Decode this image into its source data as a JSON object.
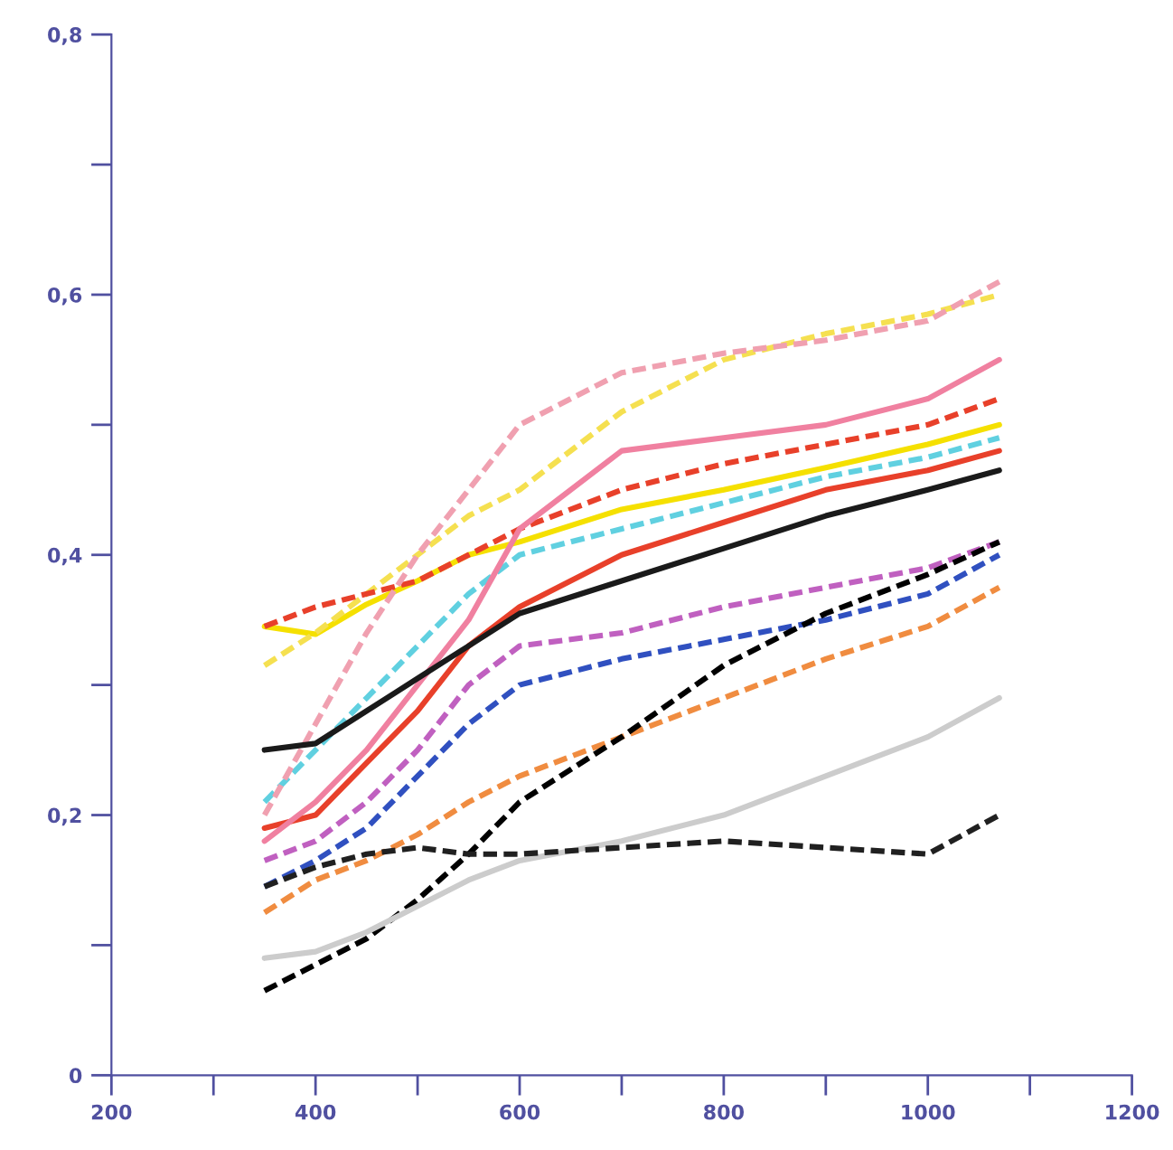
{
  "chart_data": {
    "type": "line",
    "x": [
      350,
      400,
      450,
      500,
      550,
      600,
      700,
      800,
      900,
      1000,
      1070
    ],
    "series": [
      {
        "color": "#f5e000",
        "line_style": "solid",
        "values": [
          0.345,
          0.339,
          0.362,
          0.38,
          0.4,
          0.41,
          0.435,
          0.45,
          0.467,
          0.485,
          0.5
        ]
      },
      {
        "color": "#f5e050",
        "line_style": "dashed",
        "values": [
          0.315,
          0.34,
          0.37,
          0.4,
          0.43,
          0.45,
          0.51,
          0.55,
          0.57,
          0.585,
          0.6
        ]
      },
      {
        "color": "#e8402a",
        "line_style": "solid",
        "values": [
          0.19,
          0.2,
          0.24,
          0.28,
          0.33,
          0.36,
          0.4,
          0.425,
          0.45,
          0.465,
          0.48
        ]
      },
      {
        "color": "#e8402a",
        "line_style": "dashed",
        "values": [
          0.345,
          0.36,
          0.37,
          0.38,
          0.4,
          0.42,
          0.45,
          0.47,
          0.485,
          0.5,
          0.52
        ]
      },
      {
        "color": "#f08c40",
        "line_style": "dashed",
        "values": [
          0.125,
          0.15,
          0.165,
          0.185,
          0.21,
          0.23,
          0.26,
          0.29,
          0.32,
          0.345,
          0.375
        ]
      },
      {
        "color": "#60d0e0",
        "line_style": "dashed",
        "values": [
          0.21,
          0.25,
          0.29,
          0.33,
          0.37,
          0.4,
          0.42,
          0.44,
          0.46,
          0.475,
          0.49
        ]
      },
      {
        "color": "#c060c0",
        "line_style": "dashed",
        "values": [
          0.165,
          0.18,
          0.21,
          0.25,
          0.3,
          0.33,
          0.34,
          0.36,
          0.375,
          0.39,
          0.41
        ]
      },
      {
        "color": "#3050c0",
        "line_style": "dashed",
        "values": [
          0.145,
          0.165,
          0.19,
          0.23,
          0.27,
          0.3,
          0.32,
          0.335,
          0.35,
          0.37,
          0.4
        ]
      },
      {
        "color": "#f0a0b0",
        "line_style": "dashed",
        "values": [
          0.2,
          0.27,
          0.34,
          0.4,
          0.45,
          0.5,
          0.54,
          0.555,
          0.565,
          0.58,
          0.61
        ]
      },
      {
        "color": "#000000",
        "line_style": "dashed",
        "values": [
          0.065,
          0.085,
          0.105,
          0.135,
          0.17,
          0.21,
          0.26,
          0.315,
          0.355,
          0.385,
          0.41
        ]
      },
      {
        "color": "#f080a0",
        "line_style": "solid",
        "values": [
          0.18,
          0.21,
          0.25,
          0.3,
          0.35,
          0.42,
          0.48,
          0.49,
          0.5,
          0.52,
          0.55
        ]
      },
      {
        "color": "#cccccc",
        "line_style": "solid",
        "values": [
          0.09,
          0.095,
          0.11,
          0.13,
          0.15,
          0.165,
          0.18,
          0.2,
          0.23,
          0.26,
          0.29
        ]
      },
      {
        "color": "#202020",
        "line_style": "dashed",
        "values": [
          0.145,
          0.16,
          0.17,
          0.175,
          0.17,
          0.17,
          0.175,
          0.18,
          0.175,
          0.17,
          0.2
        ]
      },
      {
        "color": "#1a1a1a",
        "line_style": "solid",
        "values": [
          0.25,
          0.255,
          0.28,
          0.305,
          0.33,
          0.355,
          0.38,
          0.405,
          0.43,
          0.45,
          0.465
        ]
      }
    ],
    "xlim": [
      200,
      1200
    ],
    "xticks": [
      200,
      {
        "value": 300,
        "label": null
      },
      400,
      {
        "value": 500,
        "label": null
      },
      600,
      {
        "value": 700,
        "label": null
      },
      800,
      {
        "value": 900,
        "label": null
      },
      1000,
      {
        "value": 1100,
        "label": null
      },
      1200
    ],
    "ylim": [
      0,
      0.8
    ],
    "yticks": [
      {
        "value": 0,
        "label": "0"
      },
      {
        "value": 0.1,
        "label": null
      },
      {
        "value": 0.2,
        "label": "0,2"
      },
      {
        "value": 0.3,
        "label": null
      },
      {
        "value": 0.4,
        "label": "0,4"
      },
      {
        "value": 0.5,
        "label": null
      },
      {
        "value": 0.6,
        "label": "0,6"
      },
      {
        "value": 0.7,
        "label": null
      },
      {
        "value": 0.8,
        "label": "0,8"
      }
    ],
    "grid": false,
    "legend": false
  }
}
